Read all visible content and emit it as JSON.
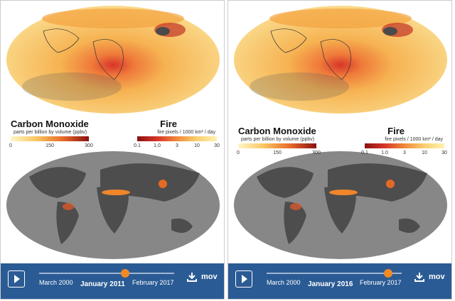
{
  "panels": [
    {
      "co_title": "Carbon Monoxide",
      "co_units": "parts per billion by volume (ppbv)",
      "co_ticks": [
        "0",
        "150",
        "300"
      ],
      "fire_title": "Fire",
      "fire_units": "fire pixels / 1000 km² / day",
      "fire_ticks": [
        "0.1",
        "1.0",
        "3",
        "10",
        "30"
      ],
      "start": "March 2000",
      "current": "January 2011",
      "end": "February 2017",
      "download": "mov"
    },
    {
      "co_title": "Carbon Monoxide",
      "co_units": "parts per billion by volume (ppbv)",
      "co_ticks": [
        "0",
        "150",
        "300"
      ],
      "fire_title": "Fire",
      "fire_units": "fire pixels / 1000 km² / day",
      "fire_ticks": [
        "0.1",
        "1.0",
        "3",
        "10",
        "30"
      ],
      "start": "March 2000",
      "current": "January 2016",
      "end": "February 2017",
      "download": "mov"
    }
  ]
}
